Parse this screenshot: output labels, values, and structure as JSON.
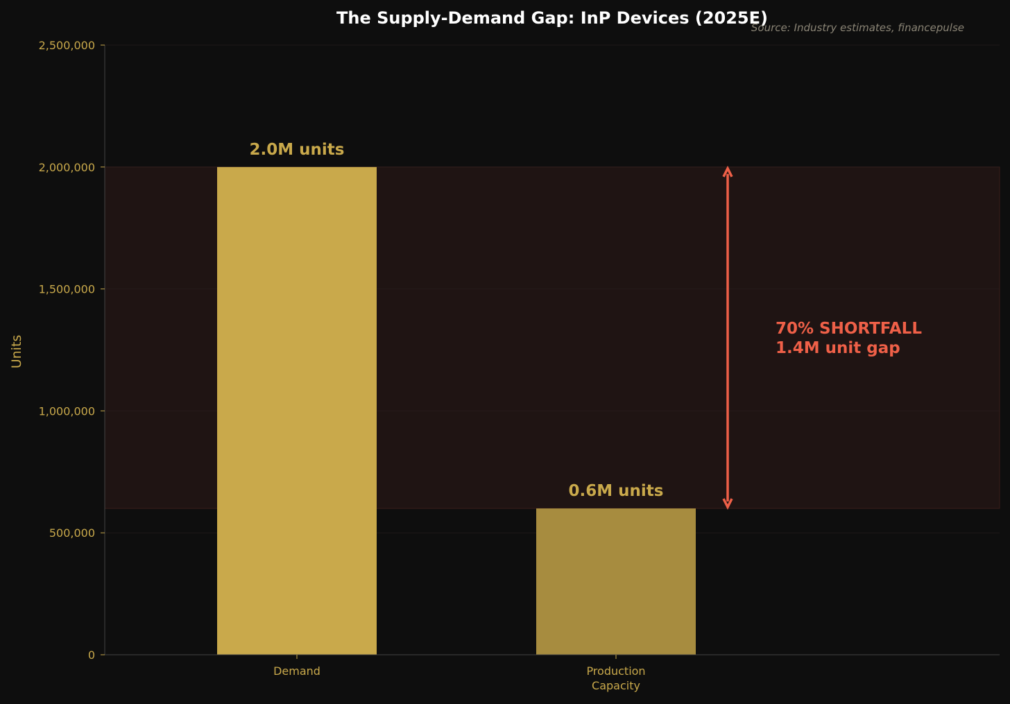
{
  "colors": {
    "background": "#0e0e0e",
    "axis_text": "#c9a94b",
    "demand_bar": "#c9a94b",
    "capacity_bar": "#a78c3f",
    "gap_band": "#1f1413",
    "gap_accent": "#ef6048",
    "title": "#ffffff",
    "source": "#8a8475",
    "axis_line": "#444444",
    "grid": "#2a2020"
  },
  "chart_data": {
    "type": "bar",
    "title": "The Supply-Demand Gap: InP Devices (2025E)",
    "source": "Source: Industry estimates, financepulse",
    "xlabel": "",
    "ylabel": "Units",
    "ylim": [
      0,
      2500000
    ],
    "yticks": [
      0,
      500000,
      1000000,
      1500000,
      2000000,
      2500000
    ],
    "ytick_labels": [
      "0",
      "500,000",
      "1,000,000",
      "1,500,000",
      "2,000,000",
      "2,500,000"
    ],
    "categories": [
      {
        "lines": [
          "Demand"
        ]
      },
      {
        "lines": [
          "Production",
          "Capacity"
        ]
      }
    ],
    "values": [
      2000000,
      600000
    ],
    "value_labels": [
      "2.0M units",
      "0.6M units"
    ],
    "gap": {
      "from": 600000,
      "to": 2000000,
      "annotation": [
        "70% SHORTFALL",
        "1.4M unit gap"
      ]
    },
    "grid": true,
    "legend": "none"
  }
}
